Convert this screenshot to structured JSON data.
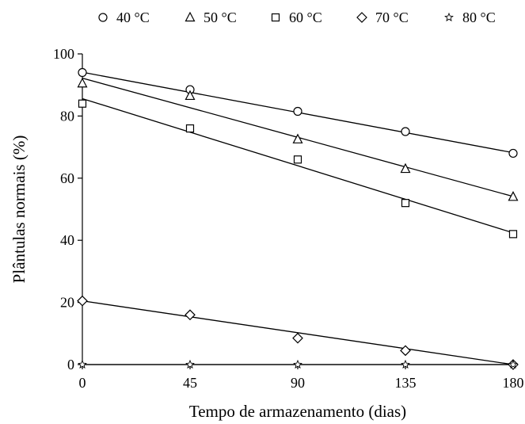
{
  "chart_data": {
    "type": "scatter",
    "xlabel": "Tempo de armazenamento (dias)",
    "ylabel": "Plântulas normais (%)",
    "x": [
      0,
      45,
      90,
      135,
      180
    ],
    "xticks": [
      "0",
      "45",
      "90",
      "135",
      "180"
    ],
    "yticks": [
      "0",
      "20",
      "40",
      "60",
      "80",
      "100"
    ],
    "xlim": [
      0,
      180
    ],
    "ylim": [
      0,
      100
    ],
    "grid": false,
    "legend_position": "top",
    "trendlines": true,
    "series": [
      {
        "name": "40 °C",
        "marker": "circle",
        "values": [
          94,
          88.5,
          81.5,
          75,
          68
        ],
        "fit": [
          94.1,
          68.2
        ]
      },
      {
        "name": "50 °C",
        "marker": "triangle",
        "values": [
          90.5,
          86.5,
          72.5,
          63,
          54
        ],
        "fit": [
          92.2,
          54.1
        ]
      },
      {
        "name": "60 °C",
        "marker": "square",
        "values": [
          84,
          76,
          66,
          52,
          42
        ],
        "fit": [
          85.6,
          42.4
        ]
      },
      {
        "name": "70 °C",
        "marker": "diamond",
        "values": [
          20.5,
          16,
          8.5,
          4.5,
          0
        ],
        "fit": [
          20.5,
          0
        ]
      },
      {
        "name": "80 °C",
        "marker": "star",
        "values": [
          0,
          0,
          0,
          0,
          0
        ],
        "fit": [
          0,
          0
        ]
      }
    ]
  }
}
